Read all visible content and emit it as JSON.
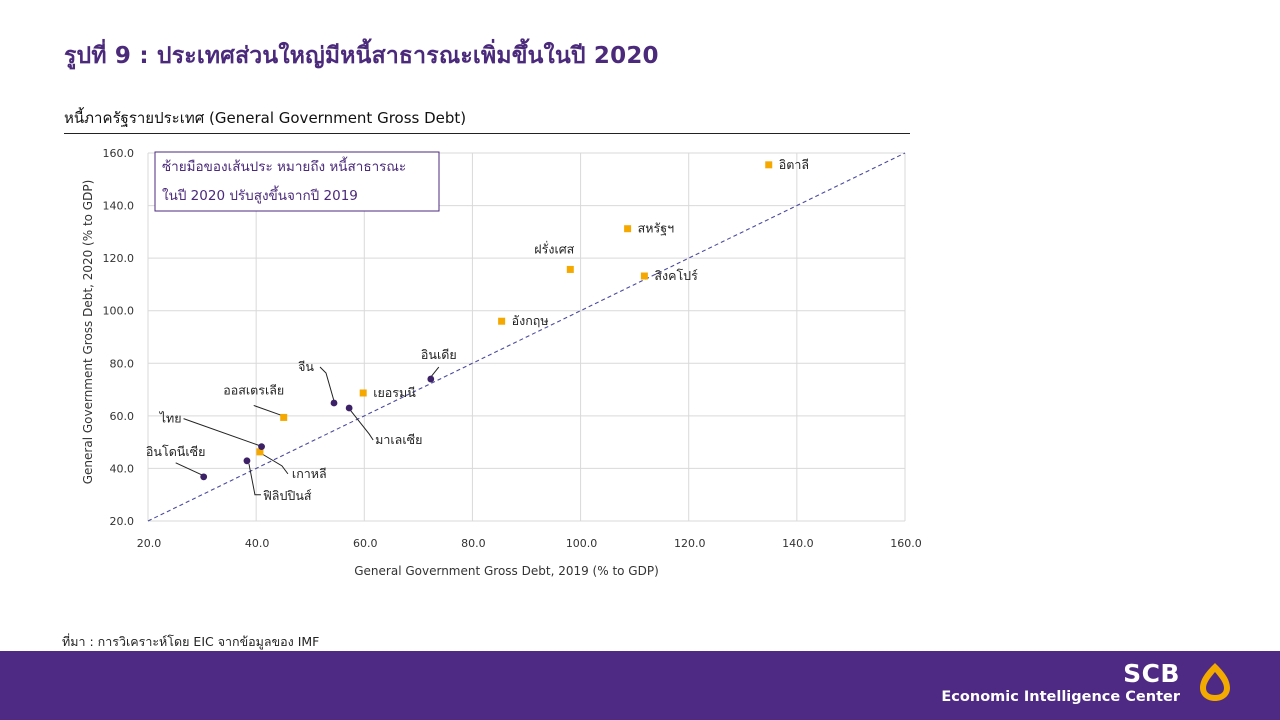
{
  "slide_title": "รูปที่ 9 : ประเทศส่วนใหญ่มีหนี้สาธารณะเพิ่มขึ้นในปี 2020",
  "source_note": "ที่มา : การวิเคราะห์โดย EIC จากข้อมูลของ IMF",
  "brand": {
    "name": "SCB",
    "subtitle": "Economic Intelligence Center"
  },
  "colors": {
    "title": "#4B2A7B",
    "footer": "#4E2A84",
    "logo": "#F2A900",
    "advanced": "#F5A800",
    "emerging": "#3C2166",
    "diagonal": "#4B4BA0",
    "grid": "#D9D9D9",
    "axis_text": "#333333",
    "annotation": "#4B2A7B"
  },
  "chart_data": {
    "type": "scatter",
    "title": "หนี้ภาครัฐรายประเทศ (General Government Gross Debt)",
    "xlabel": "General Government Gross Debt, 2019 (% to GDP)",
    "ylabel": "General Government Gross Debt, 2020 (% to GDP)",
    "xlim": [
      20,
      160
    ],
    "ylim": [
      20,
      160
    ],
    "xticks": [
      "20.0",
      "40.0",
      "60.0",
      "80.0",
      "100.0",
      "120.0",
      "140.0",
      "160.0"
    ],
    "yticks": [
      "20.0",
      "40.0",
      "60.0",
      "80.0",
      "100.0",
      "120.0",
      "140.0",
      "160.0"
    ],
    "grid": true,
    "reference_line": "y = x",
    "annotation": [
      "ซ้ายมือของเส้นประ หมายถึง หนี้สาธารณะ",
      "ในปี 2020 ปรับสูงขึ้นจากปี 2019"
    ],
    "series": [
      {
        "marker": "square",
        "color": "#F5A800",
        "points": [
          {
            "label": "อิตาลี",
            "x": 134.8,
            "y": 155.5
          },
          {
            "label": "สหรัฐฯ",
            "x": 108.7,
            "y": 131.2
          },
          {
            "label": "ฝรั่งเศส",
            "x": 98.1,
            "y": 115.7
          },
          {
            "label": "สิงคโปร์",
            "x": 111.8,
            "y": 113.2
          },
          {
            "label": "อังกฤษ",
            "x": 85.4,
            "y": 96.0
          },
          {
            "label": "เยอรมนี",
            "x": 59.8,
            "y": 68.7
          },
          {
            "label": "ออสเตรเลีย",
            "x": 45.1,
            "y": 59.4
          },
          {
            "label": "เกาหลี",
            "x": 40.7,
            "y": 46.3
          }
        ]
      },
      {
        "marker": "circle",
        "color": "#3C2166",
        "points": [
          {
            "label": "อินเดีย",
            "x": 72.3,
            "y": 74.0
          },
          {
            "label": "จีน",
            "x": 54.4,
            "y": 64.9
          },
          {
            "label": "มาเลเซีย",
            "x": 57.2,
            "y": 63.0
          },
          {
            "label": "ไทย",
            "x": 41.0,
            "y": 48.3
          },
          {
            "label": "ฟิลิปปินส์",
            "x": 38.3,
            "y": 42.9
          },
          {
            "label": "อินโดนีเซีย",
            "x": 30.3,
            "y": 36.8
          }
        ]
      }
    ]
  }
}
